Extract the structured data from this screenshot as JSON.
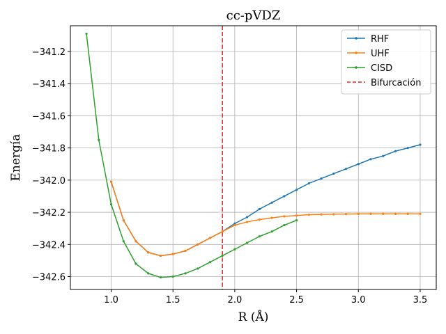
{
  "chart_data": {
    "type": "line",
    "title": "cc-pVDZ",
    "xlabel": "R (Å)",
    "ylabel": "Energía",
    "xlim": [
      0.67,
      3.63
    ],
    "ylim": [
      -342.68,
      -341.04
    ],
    "x_ticks": [
      1.0,
      1.5,
      2.0,
      2.5,
      3.0,
      3.5
    ],
    "x_tick_labels": [
      "1.0",
      "1.5",
      "2.0",
      "2.5",
      "3.0",
      "3.5"
    ],
    "y_ticks": [
      -341.2,
      -341.4,
      -341.6,
      -341.8,
      -342.0,
      -342.2,
      -342.4,
      -342.6
    ],
    "y_tick_labels": [
      "−341.2",
      "−341.4",
      "−341.6",
      "−341.8",
      "−342.0",
      "−342.2",
      "−342.4",
      "−342.6"
    ],
    "grid": true,
    "legend_position": "top-right",
    "series": [
      {
        "name": "RHF",
        "color": "#1f77b4",
        "x": [
          1.0,
          1.1,
          1.2,
          1.3,
          1.4,
          1.5,
          1.6,
          1.7,
          1.8,
          1.9,
          2.0,
          2.1,
          2.2,
          2.3,
          2.4,
          2.5,
          2.6,
          2.7,
          2.8,
          2.9,
          3.0,
          3.1,
          3.2,
          3.3,
          3.4,
          3.5
        ],
        "y": [
          -342.01,
          -342.25,
          -342.38,
          -342.45,
          -342.47,
          -342.46,
          -342.44,
          -342.4,
          -342.36,
          -342.32,
          -342.27,
          -342.23,
          -342.18,
          -342.14,
          -342.1,
          -342.06,
          -342.02,
          -341.99,
          -341.96,
          -341.93,
          -341.9,
          -341.87,
          -341.85,
          -341.82,
          -341.8,
          -341.78
        ]
      },
      {
        "name": "UHF",
        "color": "#ff7f0e",
        "x": [
          1.0,
          1.1,
          1.2,
          1.3,
          1.4,
          1.5,
          1.6,
          1.7,
          1.8,
          1.9,
          2.0,
          2.1,
          2.2,
          2.3,
          2.4,
          2.5,
          2.6,
          2.7,
          2.8,
          2.9,
          3.0,
          3.1,
          3.2,
          3.3,
          3.4,
          3.5
        ],
        "y": [
          -342.01,
          -342.25,
          -342.38,
          -342.45,
          -342.47,
          -342.46,
          -342.44,
          -342.4,
          -342.36,
          -342.32,
          -342.28,
          -342.26,
          -342.245,
          -342.235,
          -342.225,
          -342.22,
          -342.215,
          -342.213,
          -342.212,
          -342.211,
          -342.21,
          -342.21,
          -342.21,
          -342.21,
          -342.21,
          -342.21
        ]
      },
      {
        "name": "CISD",
        "color": "#2ca02c",
        "x": [
          0.8,
          0.9,
          1.0,
          1.1,
          1.2,
          1.3,
          1.4,
          1.5,
          1.6,
          1.7,
          1.8,
          1.9,
          2.0,
          2.1,
          2.2,
          2.3,
          2.4,
          2.5
        ],
        "y": [
          -341.09,
          -341.75,
          -342.15,
          -342.38,
          -342.52,
          -342.58,
          -342.605,
          -342.6,
          -342.58,
          -342.55,
          -342.51,
          -342.47,
          -342.43,
          -342.39,
          -342.35,
          -342.32,
          -342.28,
          -342.25
        ]
      }
    ],
    "annotations": [
      {
        "name": "Bifurcación",
        "type": "vertical-line",
        "x": 1.9,
        "color": "#d62728",
        "style": "dashed"
      }
    ]
  }
}
